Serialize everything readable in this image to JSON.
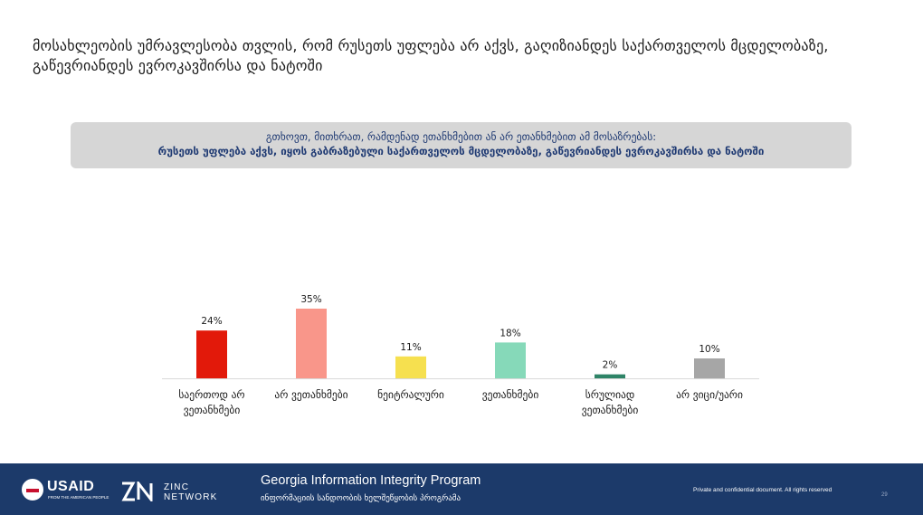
{
  "slide": {
    "title": "მოსახლეობის უმრავლესობა თვლის, რომ რუსეთს უფლება არ აქვს, გაღიზიანდეს საქართველოს მცდელობაზე, გაწევრიანდეს ევროკავშირსა და ნატოში"
  },
  "question": {
    "line1": "გთხოვთ, მითხრათ, რამდენად ეთანხმებით ან არ ეთანხმებით ამ მოსაზრებას:",
    "line2": "რუსეთს უფლება აქვს, იყოს გაბრაზებული საქართველოს მცდელობაზე, გაწევრიანდეს ევროკავშირსა და ნატოში"
  },
  "chart_data": {
    "type": "bar",
    "categories": [
      "საერთოდ არ ვეთანხმები",
      "არ ვეთანხმები",
      "ნეიტრალური",
      "ვეთანხმები",
      "სრულიად ვეთანხმები",
      "არ ვიცი/უარი"
    ],
    "category_lines": [
      [
        "საერთოდ არ",
        "ვეთანხმები"
      ],
      [
        "არ ვეთანხმები"
      ],
      [
        "ნეიტრალური"
      ],
      [
        "ვეთანხმები"
      ],
      [
        "სრულიად",
        "ვეთანხმები"
      ],
      [
        "არ ვიცი/უარი"
      ]
    ],
    "values": [
      24,
      35,
      11,
      18,
      2,
      10
    ],
    "labels": [
      "24%",
      "35%",
      "11%",
      "18%",
      "2%",
      "10%"
    ],
    "colors": [
      "#e2190a",
      "#f9968a",
      "#f6e04f",
      "#86d9b9",
      "#2e8467",
      "#a6a6a6"
    ],
    "ylim": [
      0,
      35
    ],
    "grid": false,
    "legend": "none"
  },
  "footer": {
    "usaid": "USAID",
    "usaid_tagline": "FROM THE AMERICAN PEOPLE",
    "zinc_line1": "ZINC",
    "zinc_line2": "NETWORK",
    "program_title": "Georgia Information Integrity Program",
    "program_subtitle": "ინფორმაციის სანდოობის ხელშეწყობის პროგრამა",
    "confidential": "Private and confidential document. All rights reserved",
    "page_number": "29"
  }
}
